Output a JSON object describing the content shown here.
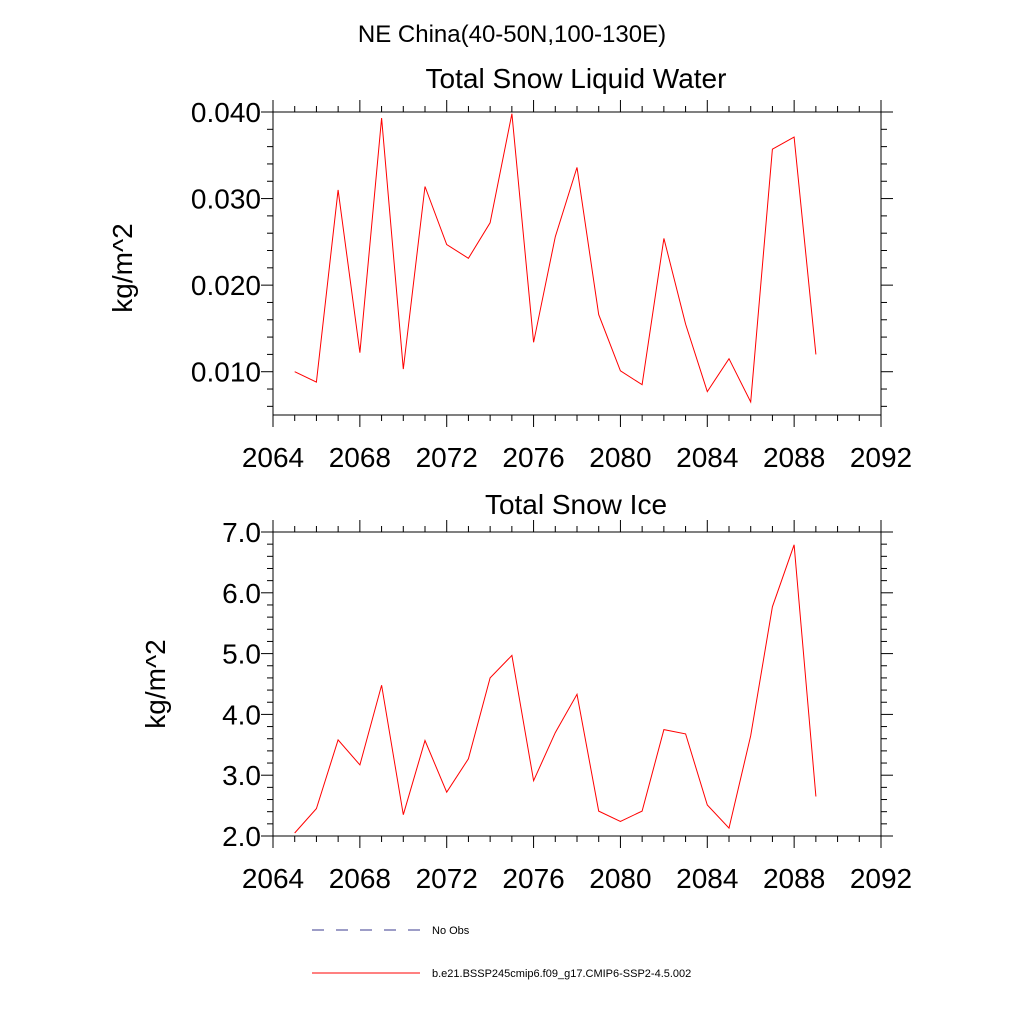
{
  "figure": {
    "title": "NE China(40-50N,100-130E)"
  },
  "legend": [
    {
      "label": "No Obs",
      "color": "#3b3b8f",
      "style": "dashed"
    },
    {
      "label": "b.e21.BSSP245cmip6.f09_g17.CMIP6-SSP2-4.5.002",
      "color": "#ff0000",
      "style": "solid"
    }
  ],
  "chart_data": [
    {
      "type": "line",
      "title": "Total Snow Liquid Water",
      "xlabel": "",
      "ylabel": "kg/m^2",
      "xlim": [
        2064,
        2092
      ],
      "ylim": [
        0.005,
        0.04
      ],
      "xticks": [
        2064,
        2068,
        2072,
        2076,
        2080,
        2084,
        2088,
        2092
      ],
      "yticks": [
        0.01,
        0.02,
        0.03,
        0.04
      ],
      "yticklabels": [
        "0.010",
        "0.020",
        "0.030",
        "0.040"
      ],
      "x": [
        2065,
        2066,
        2067,
        2068,
        2069,
        2070,
        2071,
        2072,
        2073,
        2074,
        2075,
        2076,
        2077,
        2078,
        2079,
        2080,
        2081,
        2082,
        2083,
        2084,
        2085,
        2086,
        2087,
        2088,
        2089
      ],
      "series": [
        {
          "name": "b.e21.BSSP245cmip6.f09_g17.CMIP6-SSP2-4.5.002",
          "color": "#ff0000",
          "values": [
            0.01,
            0.0088,
            0.031,
            0.0122,
            0.0393,
            0.0103,
            0.0314,
            0.0247,
            0.0231,
            0.0272,
            0.0398,
            0.0134,
            0.0256,
            0.0336,
            0.0166,
            0.0101,
            0.0085,
            0.0254,
            0.0155,
            0.0077,
            0.0115,
            0.0065,
            0.0357,
            0.0371,
            0.012
          ]
        }
      ],
      "grid": false
    },
    {
      "type": "line",
      "title": "Total Snow Ice",
      "xlabel": "",
      "ylabel": "kg/m^2",
      "xlim": [
        2064,
        2092
      ],
      "ylim": [
        2.0,
        7.0
      ],
      "xticks": [
        2064,
        2068,
        2072,
        2076,
        2080,
        2084,
        2088,
        2092
      ],
      "yticks": [
        2.0,
        3.0,
        4.0,
        5.0,
        6.0,
        7.0
      ],
      "yticklabels": [
        "2.0",
        "3.0",
        "4.0",
        "5.0",
        "6.0",
        "7.0"
      ],
      "x": [
        2065,
        2066,
        2067,
        2068,
        2069,
        2070,
        2071,
        2072,
        2073,
        2074,
        2075,
        2076,
        2077,
        2078,
        2079,
        2080,
        2081,
        2082,
        2083,
        2084,
        2085,
        2086,
        2087,
        2088,
        2089
      ],
      "series": [
        {
          "name": "b.e21.BSSP245cmip6.f09_g17.CMIP6-SSP2-4.5.002",
          "color": "#ff0000",
          "values": [
            2.05,
            2.45,
            3.58,
            3.17,
            4.48,
            2.35,
            3.57,
            2.72,
            3.27,
            4.6,
            4.97,
            2.91,
            3.7,
            4.33,
            2.41,
            2.24,
            2.41,
            3.75,
            3.68,
            2.51,
            2.13,
            3.65,
            5.77,
            6.79,
            2.65
          ]
        }
      ],
      "grid": false
    }
  ]
}
